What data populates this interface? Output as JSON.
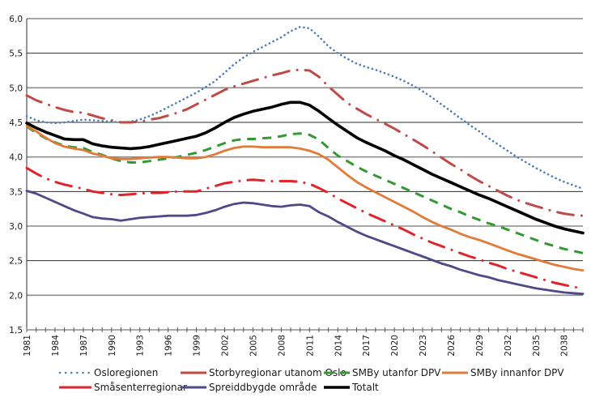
{
  "chart_data": {
    "type": "line",
    "title": "",
    "xlabel": "",
    "ylabel": "",
    "ylim": [
      1.5,
      6.0
    ],
    "yticks": [
      1.5,
      2.0,
      2.5,
      3.0,
      3.5,
      4.0,
      4.5,
      5.0,
      5.5,
      6.0
    ],
    "ytick_labels": [
      "1,5",
      "2,0",
      "2,5",
      "3,0",
      "3,5",
      "4,0",
      "4,5",
      "5,0",
      "5,5",
      "6,0"
    ],
    "x": [
      1981,
      1982,
      1983,
      1984,
      1985,
      1986,
      1987,
      1988,
      1989,
      1990,
      1991,
      1992,
      1993,
      1994,
      1995,
      1996,
      1997,
      1998,
      1999,
      2000,
      2001,
      2002,
      2003,
      2004,
      2005,
      2006,
      2007,
      2008,
      2009,
      2010,
      2011,
      2012,
      2013,
      2014,
      2015,
      2016,
      2017,
      2018,
      2019,
      2020,
      2021,
      2022,
      2023,
      2024,
      2025,
      2026,
      2027,
      2028,
      2029,
      2030,
      2031,
      2032,
      2033,
      2034,
      2035,
      2036,
      2037,
      2038,
      2039,
      2040
    ],
    "xtick_labels": [
      "1981",
      "1984",
      "1987",
      "1990",
      "1993",
      "1996",
      "1999",
      "2002",
      "2005",
      "2008",
      "2011",
      "2014",
      "2017",
      "2020",
      "2023",
      "2026",
      "2029",
      "2032",
      "2035",
      "2038"
    ],
    "grid": true,
    "legend_position": "bottom",
    "series": [
      {
        "name": "Osloregionen",
        "color": "#4a7ebb",
        "style": "dotted",
        "values": [
          4.59,
          4.53,
          4.5,
          4.49,
          4.5,
          4.52,
          4.54,
          4.53,
          4.52,
          4.51,
          4.5,
          4.51,
          4.54,
          4.59,
          4.65,
          4.72,
          4.79,
          4.86,
          4.93,
          5.01,
          5.1,
          5.22,
          5.34,
          5.44,
          5.52,
          5.59,
          5.66,
          5.73,
          5.82,
          5.88,
          5.86,
          5.74,
          5.6,
          5.5,
          5.42,
          5.35,
          5.3,
          5.26,
          5.21,
          5.16,
          5.1,
          5.03,
          4.95,
          4.86,
          4.76,
          4.66,
          4.56,
          4.46,
          4.37,
          4.27,
          4.18,
          4.09,
          4.0,
          3.92,
          3.84,
          3.77,
          3.7,
          3.64,
          3.59,
          3.54
        ]
      },
      {
        "name": "Storbyregionar utanom Oslo",
        "color": "#be4b48",
        "style": "dash-dot",
        "values": [
          4.89,
          4.82,
          4.77,
          4.72,
          4.68,
          4.65,
          4.64,
          4.6,
          4.56,
          4.53,
          4.5,
          4.5,
          4.51,
          4.54,
          4.56,
          4.6,
          4.64,
          4.69,
          4.76,
          4.83,
          4.9,
          4.97,
          5.02,
          5.06,
          5.1,
          5.14,
          5.18,
          5.21,
          5.25,
          5.26,
          5.25,
          5.16,
          5.02,
          4.9,
          4.78,
          4.7,
          4.62,
          4.55,
          4.48,
          4.41,
          4.33,
          4.25,
          4.17,
          4.08,
          3.99,
          3.9,
          3.82,
          3.73,
          3.65,
          3.58,
          3.51,
          3.44,
          3.38,
          3.33,
          3.29,
          3.25,
          3.21,
          3.18,
          3.16,
          3.15
        ]
      },
      {
        "name": "SMBy utanfor DPV",
        "color": "#339933",
        "style": "dashed",
        "values": [
          4.44,
          4.35,
          4.27,
          4.21,
          4.16,
          4.14,
          4.13,
          4.07,
          4.03,
          3.98,
          3.94,
          3.92,
          3.92,
          3.94,
          3.96,
          3.98,
          4.0,
          4.03,
          4.06,
          4.1,
          4.15,
          4.2,
          4.24,
          4.26,
          4.26,
          4.27,
          4.28,
          4.3,
          4.33,
          4.34,
          4.32,
          4.25,
          4.13,
          4.02,
          3.94,
          3.86,
          3.79,
          3.73,
          3.67,
          3.61,
          3.55,
          3.49,
          3.43,
          3.37,
          3.31,
          3.25,
          3.2,
          3.14,
          3.09,
          3.04,
          3.0,
          2.95,
          2.9,
          2.85,
          2.8,
          2.75,
          2.71,
          2.67,
          2.64,
          2.61
        ]
      },
      {
        "name": "SMBy innanfor DPV",
        "color": "#e07b39",
        "style": "solid",
        "values": [
          4.45,
          4.37,
          4.28,
          4.2,
          4.15,
          4.12,
          4.1,
          4.05,
          4.02,
          3.98,
          3.97,
          3.97,
          3.98,
          3.99,
          4.0,
          4.0,
          3.99,
          3.98,
          3.98,
          4.0,
          4.04,
          4.09,
          4.13,
          4.15,
          4.15,
          4.14,
          4.14,
          4.14,
          4.14,
          4.12,
          4.09,
          4.04,
          3.96,
          3.85,
          3.74,
          3.64,
          3.56,
          3.49,
          3.42,
          3.35,
          3.28,
          3.21,
          3.13,
          3.06,
          3.0,
          2.95,
          2.89,
          2.84,
          2.8,
          2.75,
          2.7,
          2.65,
          2.6,
          2.56,
          2.52,
          2.48,
          2.44,
          2.41,
          2.38,
          2.36
        ]
      },
      {
        "name": "Småsenterregionar",
        "color": "#e0242b",
        "style": "dash-dot",
        "values": [
          3.84,
          3.76,
          3.69,
          3.64,
          3.6,
          3.57,
          3.54,
          3.5,
          3.48,
          3.46,
          3.45,
          3.46,
          3.47,
          3.48,
          3.48,
          3.49,
          3.5,
          3.5,
          3.5,
          3.54,
          3.58,
          3.62,
          3.64,
          3.66,
          3.67,
          3.66,
          3.65,
          3.65,
          3.65,
          3.64,
          3.61,
          3.55,
          3.48,
          3.4,
          3.33,
          3.26,
          3.19,
          3.13,
          3.07,
          3.01,
          2.95,
          2.88,
          2.82,
          2.76,
          2.71,
          2.66,
          2.61,
          2.56,
          2.52,
          2.47,
          2.43,
          2.38,
          2.34,
          2.3,
          2.26,
          2.22,
          2.18,
          2.15,
          2.12,
          2.1
        ]
      },
      {
        "name": "Spreiddbygde område",
        "color": "#4e4a87",
        "style": "solid",
        "values": [
          3.51,
          3.47,
          3.41,
          3.35,
          3.29,
          3.23,
          3.18,
          3.13,
          3.11,
          3.1,
          3.08,
          3.1,
          3.12,
          3.13,
          3.14,
          3.15,
          3.15,
          3.15,
          3.16,
          3.19,
          3.23,
          3.28,
          3.32,
          3.34,
          3.33,
          3.31,
          3.29,
          3.28,
          3.3,
          3.31,
          3.29,
          3.2,
          3.14,
          3.06,
          2.99,
          2.92,
          2.86,
          2.81,
          2.76,
          2.71,
          2.66,
          2.61,
          2.56,
          2.51,
          2.46,
          2.42,
          2.37,
          2.33,
          2.29,
          2.26,
          2.22,
          2.19,
          2.16,
          2.13,
          2.1,
          2.08,
          2.06,
          2.04,
          2.03,
          2.02
        ]
      },
      {
        "name": "Totalt",
        "color": "#000000",
        "style": "solid-bold",
        "values": [
          4.49,
          4.42,
          4.36,
          4.31,
          4.26,
          4.25,
          4.25,
          4.19,
          4.16,
          4.14,
          4.13,
          4.12,
          4.13,
          4.15,
          4.18,
          4.21,
          4.24,
          4.27,
          4.3,
          4.35,
          4.42,
          4.5,
          4.57,
          4.62,
          4.66,
          4.69,
          4.72,
          4.76,
          4.79,
          4.79,
          4.75,
          4.66,
          4.56,
          4.46,
          4.37,
          4.28,
          4.21,
          4.15,
          4.09,
          4.02,
          3.96,
          3.89,
          3.82,
          3.75,
          3.69,
          3.63,
          3.57,
          3.51,
          3.45,
          3.4,
          3.34,
          3.28,
          3.22,
          3.16,
          3.1,
          3.05,
          3.0,
          2.96,
          2.93,
          2.9
        ]
      }
    ]
  }
}
